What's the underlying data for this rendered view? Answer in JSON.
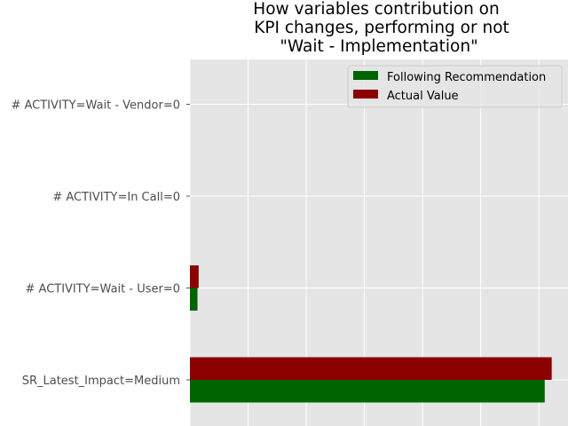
{
  "chart_data": {
    "type": "bar",
    "orientation": "horizontal",
    "title_lines": [
      "How variables contribution on",
      "KPI changes, performing or not",
      "\"Wait - Implementation\""
    ],
    "categories": [
      "SR_Latest_Impact=Medium",
      "# ACTIVITY=Wait - User=0",
      "# ACTIVITY=In Call=0",
      "# ACTIVITY=Wait - Vendor=0"
    ],
    "series": [
      {
        "name": "Following Recommendation",
        "color": "#006400",
        "values": [
          0.61,
          0.013,
          0.0,
          0.0
        ]
      },
      {
        "name": "Actual Value",
        "color": "#8b0000",
        "values": [
          0.622,
          0.015,
          0.0,
          0.0
        ]
      }
    ],
    "xlim": [
      0,
      0.65
    ],
    "x_gridlines": [
      0,
      0.1,
      0.2,
      0.3,
      0.4,
      0.5,
      0.6
    ],
    "xlabel": "",
    "ylabel": "",
    "grid": true,
    "legend_position": "top-right",
    "background_color": "#e5e5e5",
    "grid_color": "#ffffff"
  }
}
